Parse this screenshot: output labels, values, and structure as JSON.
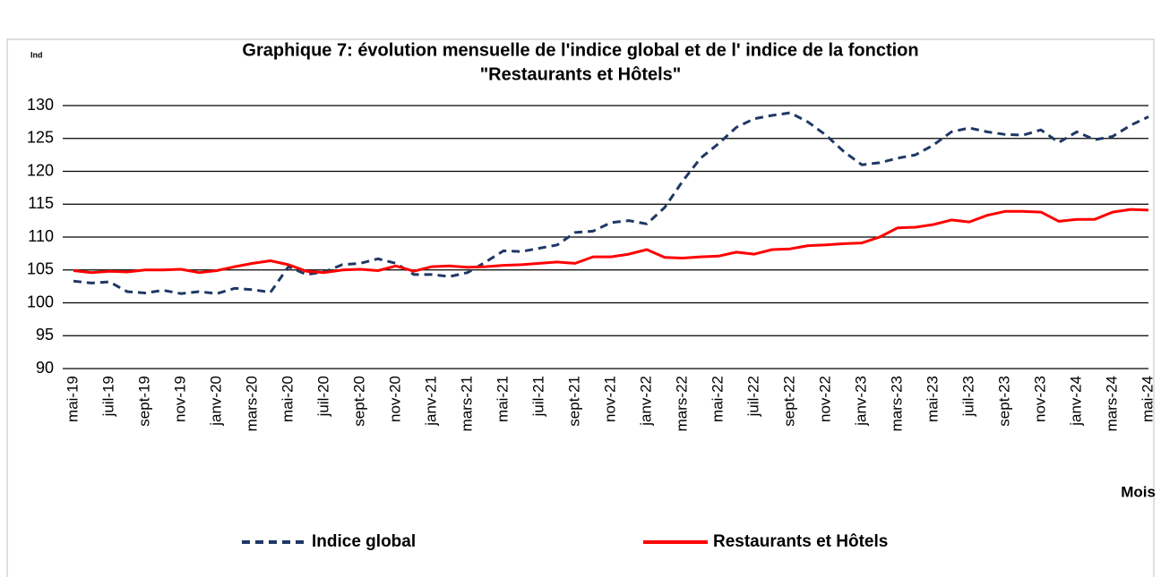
{
  "chart_data": {
    "type": "line",
    "title": [
      "Graphique 7: évolution mensuelle de l'indice global et de l' indice de la fonction",
      "\"Restaurants et Hôtels\""
    ],
    "y_label": "Ind",
    "x_label": "Mois",
    "categories": [
      "mai-19",
      null,
      "juil-19",
      null,
      "sept-19",
      null,
      "nov-19",
      null,
      "janv-20",
      null,
      "mars-20",
      null,
      "mai-20",
      null,
      "juil-20",
      null,
      "sept-20",
      null,
      "nov-20",
      null,
      "janv-21",
      null,
      "mars-21",
      null,
      "mai-21",
      null,
      "juil-21",
      null,
      "sept-21",
      null,
      "nov-21",
      null,
      "janv-22",
      null,
      "mars-22",
      null,
      "mai-22",
      null,
      "juil-22",
      null,
      "sept-22",
      null,
      "nov-22",
      null,
      "janv-23",
      null,
      "mars-23",
      null,
      "mai-23",
      null,
      "juil-23",
      null,
      "sept-23",
      null,
      "nov-23",
      null,
      "janv-24",
      null,
      "mars-24",
      null,
      "mai-24"
    ],
    "series": [
      {
        "name": "Indice global",
        "color": "#1f3864",
        "dashed": true,
        "values": [
          103.3,
          103.0,
          103.2,
          101.7,
          101.5,
          101.9,
          101.4,
          101.7,
          101.4,
          102.2,
          102.0,
          101.6,
          105.5,
          104.3,
          104.7,
          105.8,
          106.0,
          106.7,
          106.0,
          104.3,
          104.3,
          104.0,
          104.6,
          106.2,
          107.9,
          107.8,
          108.3,
          108.8,
          110.7,
          110.9,
          112.2,
          112.5,
          112.0,
          114.5,
          118.5,
          122.0,
          124.2,
          126.7,
          128.0,
          128.5,
          128.9,
          127.5,
          125.5,
          123.0,
          121.0,
          121.3,
          122.0,
          122.5,
          124.0,
          126.0,
          126.6,
          126.0,
          125.6,
          125.5,
          126.3,
          124.4,
          126.0,
          124.8,
          125.3,
          127.0,
          128.3
        ]
      },
      {
        "name": "Restaurants et Hôtels",
        "color": "#ff0000",
        "dashed": false,
        "values": [
          104.9,
          104.6,
          104.8,
          104.7,
          105.0,
          105.0,
          105.1,
          104.6,
          104.9,
          105.5,
          106.0,
          106.4,
          105.8,
          104.8,
          104.6,
          105.0,
          105.1,
          104.9,
          105.6,
          104.8,
          105.5,
          105.6,
          105.4,
          105.5,
          105.7,
          105.8,
          106.0,
          106.2,
          106.0,
          107.0,
          107.0,
          107.4,
          108.1,
          106.9,
          106.8,
          107.0,
          107.1,
          107.7,
          107.4,
          108.1,
          108.2,
          108.7,
          108.8,
          109.0,
          109.1,
          110.0,
          111.4,
          111.5,
          111.9,
          112.6,
          112.3,
          113.3,
          113.9,
          113.9,
          113.8,
          112.4,
          112.7,
          112.7,
          113.8,
          114.2,
          114.1
        ]
      }
    ],
    "ylim": [
      90,
      130
    ],
    "yticks": [
      90,
      95,
      100,
      105,
      110,
      115,
      120,
      125,
      130
    ],
    "grid": true,
    "legend": "bottom"
  }
}
